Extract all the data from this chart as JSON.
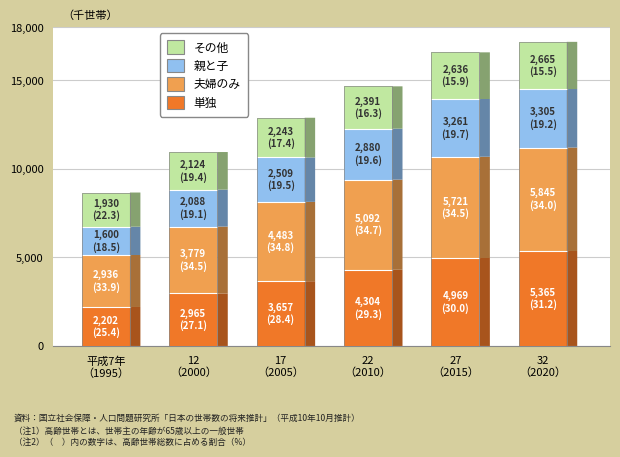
{
  "years": [
    "平成7年\n（1995）",
    "12\n（2000）",
    "17\n（2005）",
    "22\n（2010）",
    "27\n（2015）",
    "32\n（2020）"
  ],
  "single": [
    2202,
    2965,
    3657,
    4304,
    4969,
    5365
  ],
  "single_pct": [
    25.4,
    27.1,
    28.4,
    29.3,
    30.0,
    31.2
  ],
  "couple": [
    2936,
    3779,
    4483,
    5092,
    5721,
    5845
  ],
  "couple_pct": [
    33.9,
    34.5,
    34.8,
    34.7,
    34.5,
    34.0
  ],
  "parent_child": [
    1600,
    2088,
    2509,
    2880,
    3261,
    3305
  ],
  "parent_child_pct": [
    18.5,
    19.1,
    19.5,
    19.6,
    19.7,
    19.2
  ],
  "other": [
    1930,
    2124,
    2243,
    2391,
    2636,
    2665
  ],
  "other_pct": [
    22.3,
    19.4,
    17.4,
    16.3,
    15.9,
    15.5
  ],
  "color_single": "#F07828",
  "color_couple": "#F0A050",
  "color_parent_child": "#90C0F0",
  "color_other": "#C0E8A0",
  "color_single_dark": "#C05010",
  "color_couple_dark": "#C07830",
  "color_parent_child_dark": "#6090C0",
  "color_other_dark": "#90C870",
  "bg_color": "#D6CF9E",
  "plot_bg_color": "#FFFFFF",
  "ylabel": "（千世帯）",
  "ylim": [
    0,
    18000
  ],
  "title": "",
  "legend_labels": [
    "その他",
    "親と子",
    "夫婦のみ",
    "単独"
  ],
  "bar_width": 0.55,
  "depth": 0.12,
  "note1": "資料：国立社会保障・人口問題研究所「日本の世帯数の将来推計」（平成10年10月推計）",
  "note2": "（注1）高齢世帯とは、世帯主の年齢が65歳以上の一般世帯",
  "note3": "（注2）（　）内の数字は、高齢世帯総数に占める割合（%）"
}
